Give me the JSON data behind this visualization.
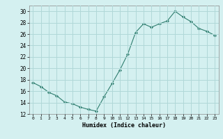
{
  "x": [
    0,
    1,
    2,
    3,
    4,
    5,
    6,
    7,
    8,
    9,
    10,
    11,
    12,
    13,
    14,
    15,
    16,
    17,
    18,
    19,
    20,
    21,
    22,
    23
  ],
  "y": [
    17.5,
    16.8,
    15.8,
    15.2,
    14.1,
    13.8,
    13.2,
    12.8,
    12.5,
    15.0,
    17.3,
    19.7,
    22.5,
    26.3,
    27.8,
    27.2,
    27.8,
    28.3,
    30.0,
    29.0,
    28.2,
    27.0,
    26.5,
    25.8
  ],
  "line_color": "#2e7d6e",
  "marker": "D",
  "marker_size": 2,
  "xlabel": "Humidex (Indice chaleur)",
  "background_color": "#d4f0f0",
  "grid_color": "#b0d8d8",
  "ylim": [
    12,
    31
  ],
  "xlim": [
    -0.5,
    23.5
  ],
  "yticks": [
    12,
    14,
    16,
    18,
    20,
    22,
    24,
    26,
    28,
    30
  ],
  "xticks": [
    0,
    1,
    2,
    3,
    4,
    5,
    6,
    7,
    8,
    9,
    10,
    11,
    12,
    13,
    14,
    15,
    16,
    17,
    18,
    19,
    20,
    21,
    22,
    23
  ]
}
